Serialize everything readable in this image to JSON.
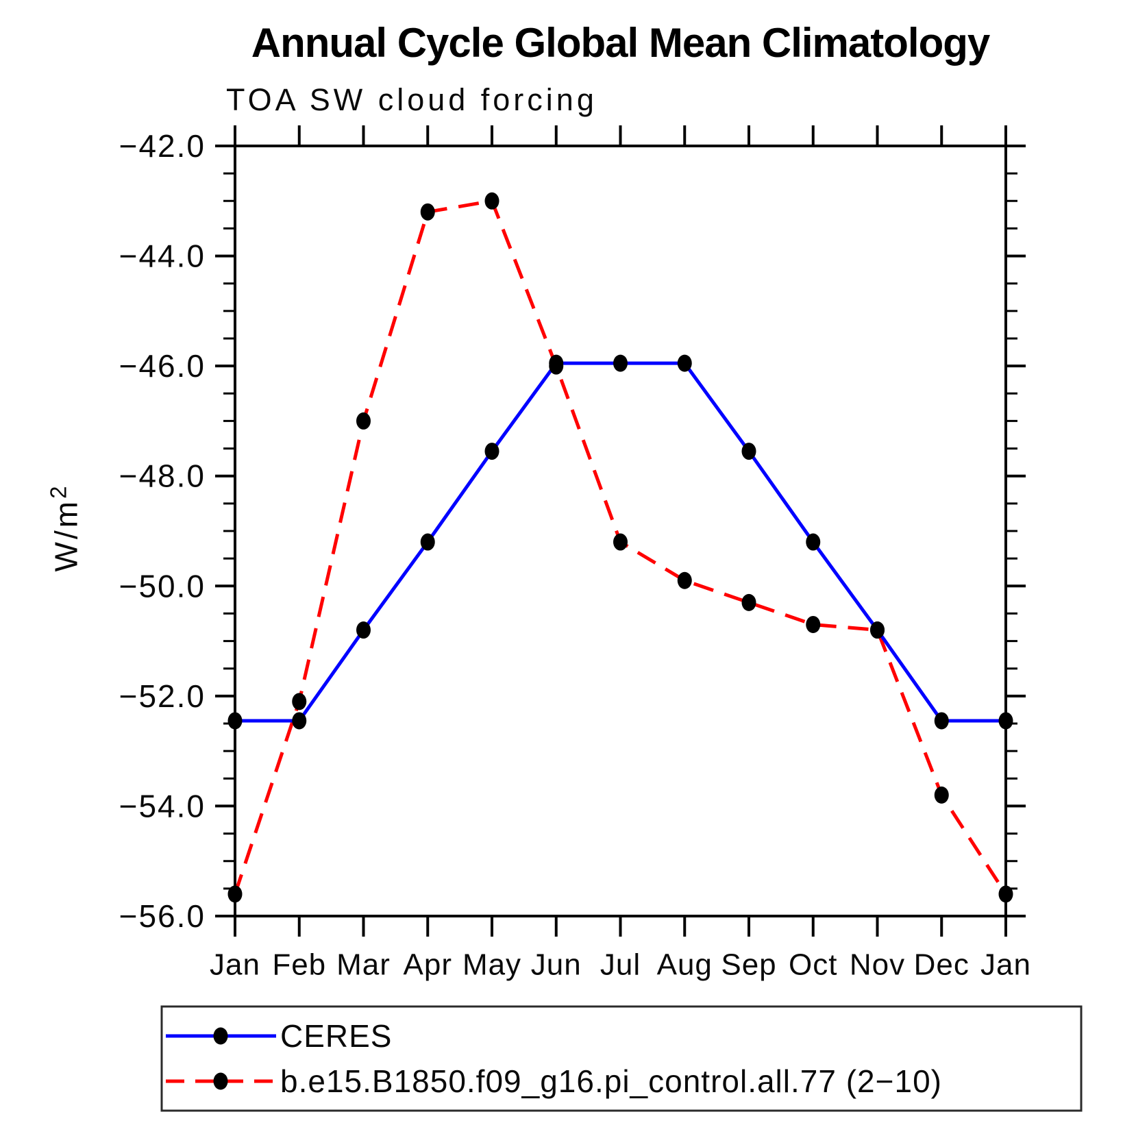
{
  "header": {
    "title": "Annual Cycle Global Mean Climatology",
    "subtitle": "TOA SW cloud forcing"
  },
  "chart_data": {
    "type": "line",
    "title": "Annual Cycle Global Mean Climatology",
    "subtitle": "TOA SW cloud forcing",
    "categories": [
      "Jan",
      "Feb",
      "Mar",
      "Apr",
      "May",
      "Jun",
      "Jul",
      "Aug",
      "Sep",
      "Oct",
      "Nov",
      "Dec",
      "Jan"
    ],
    "series": [
      {
        "name": "CERES",
        "color": "#0000ff",
        "line_style": "solid",
        "marker": "black-dot",
        "values": [
          -52.45,
          -52.45,
          -50.8,
          -49.2,
          -47.55,
          -45.95,
          -45.95,
          -45.95,
          -47.55,
          -49.2,
          -50.8,
          -52.45,
          -52.45
        ]
      },
      {
        "name": "b.e15.B1850.f09_g16.pi_control.all.77 (2−10)",
        "color": "#ff0000",
        "line_style": "dashed",
        "marker": "black-dot",
        "values": [
          -55.6,
          -52.1,
          -47.0,
          -43.2,
          -43.0,
          -46.0,
          -49.2,
          -49.9,
          -50.3,
          -50.7,
          -50.8,
          -53.8,
          -55.6
        ]
      }
    ],
    "ylabel_base": "W/m",
    "ylabel_sup": "2",
    "ylim": [
      -56.0,
      -42.0
    ],
    "ytick_major": 2.0,
    "ytick_minor": 0.5,
    "ytick_labels": [
      "−42.0",
      "−44.0",
      "−46.0",
      "−48.0",
      "−50.0",
      "−52.0",
      "−54.0",
      "−56.0"
    ],
    "grid": false,
    "legend_position": "bottom-left-box",
    "marker_color": "#000000",
    "axis_color": "#000000",
    "legend_border_color": "#2b2b2b"
  }
}
